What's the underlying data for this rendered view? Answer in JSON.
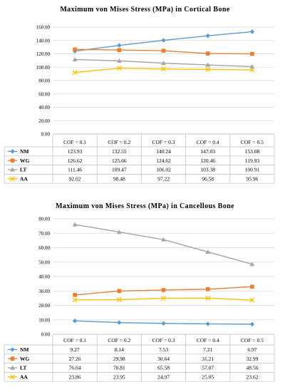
{
  "chart_data": [
    {
      "type": "line",
      "title": "Maximum von Mises Stress (MPa) in Cortical Bone",
      "categories": [
        "COF = 0.1",
        "COF = 0.2",
        "COF = 0.3",
        "COF = 0.4",
        "COF = 0.5"
      ],
      "ylim": [
        0,
        160
      ],
      "yticks": [
        "0.00",
        "20.00",
        "40.00",
        "60.00",
        "80.00",
        "100.00",
        "120.00",
        "140.00",
        "160.00"
      ],
      "grid": true,
      "legend_placement": "data-table-left",
      "series": [
        {
          "name": "NM",
          "color": "#5b9bd5",
          "marker": "diamond",
          "values": [
            123.93,
            132.55,
            140.24,
            147.03,
            153.08
          ],
          "labels": [
            "123.93",
            "132.55",
            "140.24",
            "147.03",
            "153.08"
          ]
        },
        {
          "name": "WG",
          "color": "#ed7d31",
          "marker": "square",
          "values": [
            126.62,
            125.66,
            124.62,
            120.46,
            119.93
          ],
          "labels": [
            "126.62",
            "125.66",
            "124.62",
            "120.46",
            "119.93"
          ]
        },
        {
          "name": "LT",
          "color": "#a5a5a5",
          "marker": "triangle",
          "values": [
            111.46,
            109.47,
            106.02,
            103.38,
            100.91
          ],
          "labels": [
            "111.46",
            "109.47",
            "106.02",
            "103.38",
            "100.91"
          ]
        },
        {
          "name": "AA",
          "color": "#ffc000",
          "marker": "x",
          "values": [
            92.02,
            98.48,
            97.22,
            96.58,
            95.96
          ],
          "labels": [
            "92.02",
            "98.48",
            "97.22",
            "96.58",
            "95.96"
          ]
        }
      ]
    },
    {
      "type": "line",
      "title": "Maximum von Mises Stress (MPa) in Cancellous Bone",
      "categories": [
        "COF = 0.1",
        "COF = 0.2",
        "COF = 0.3",
        "COF = 0.4",
        "COF = 0.5"
      ],
      "ylim": [
        0,
        80
      ],
      "yticks": [
        "0.00",
        "10.00",
        "20.00",
        "30.00",
        "40.00",
        "50.00",
        "60.00",
        "70.00",
        "80.00"
      ],
      "grid": true,
      "legend_placement": "data-table-left",
      "series": [
        {
          "name": "NM",
          "color": "#5b9bd5",
          "marker": "diamond",
          "values": [
            9.27,
            8.14,
            7.53,
            7.21,
            6.97
          ],
          "labels": [
            "9.27",
            "8.14",
            "7.53",
            "7.21",
            "6.97"
          ]
        },
        {
          "name": "WG",
          "color": "#ed7d31",
          "marker": "square",
          "values": [
            27.26,
            29.98,
            30.64,
            31.21,
            32.99
          ],
          "labels": [
            "27.26",
            "29.98",
            "30.64",
            "31.21",
            "32.99"
          ]
        },
        {
          "name": "LT",
          "color": "#a5a5a5",
          "marker": "triangle",
          "values": [
            76.04,
            70.81,
            65.58,
            57.07,
            48.56
          ],
          "labels": [
            "76.04",
            "70.81",
            "65.58",
            "57.07",
            "48.56"
          ]
        },
        {
          "name": "AA",
          "color": "#ffc000",
          "marker": "x",
          "values": [
            23.86,
            23.95,
            24.97,
            25.05,
            23.62
          ],
          "labels": [
            "23.86",
            "23.95",
            "24.97",
            "25.05",
            "23.62"
          ]
        }
      ]
    }
  ]
}
